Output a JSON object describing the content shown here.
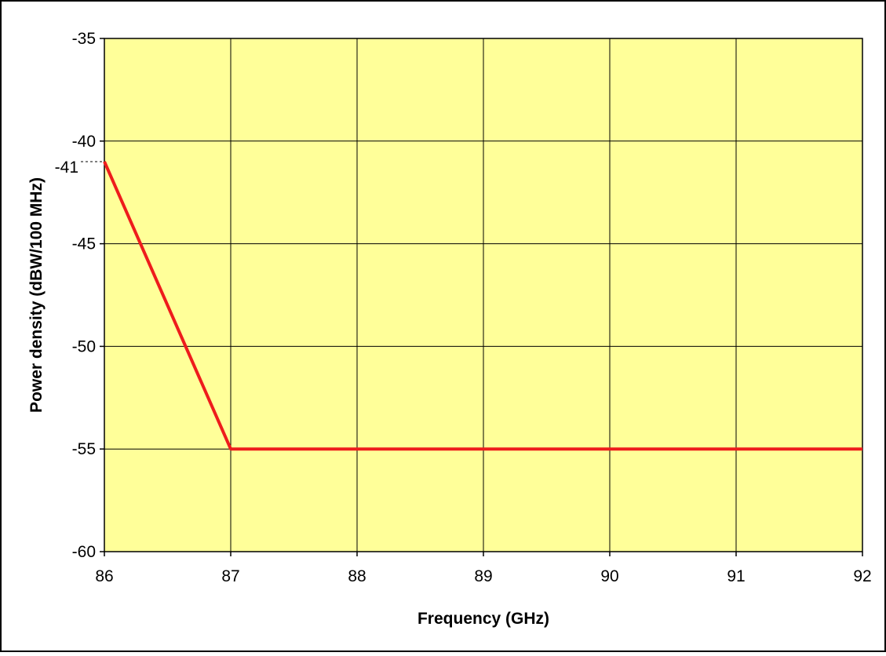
{
  "chart_data": {
    "type": "line",
    "title": "",
    "xlabel": "Frequency (GHz)",
    "ylabel": "Power density (dBW/100 MHz)",
    "xlim": [
      86,
      92
    ],
    "ylim": [
      -60,
      -35
    ],
    "x_ticks": [
      86,
      87,
      88,
      89,
      90,
      91,
      92
    ],
    "y_ticks": [
      -35,
      -40,
      -45,
      -50,
      -55,
      -60
    ],
    "annotations": [
      {
        "label": "-41",
        "y": -41,
        "style": "dashed-leader-to-axis"
      }
    ],
    "grid": true,
    "legend": "none",
    "series": [
      {
        "x": [
          86,
          87,
          92
        ],
        "y": [
          -41,
          -55,
          -55
        ],
        "color": "#ee1c1c"
      }
    ],
    "colors": {
      "plot_background": "#ffff99",
      "grid": "#000000",
      "frame": "#000000"
    }
  }
}
